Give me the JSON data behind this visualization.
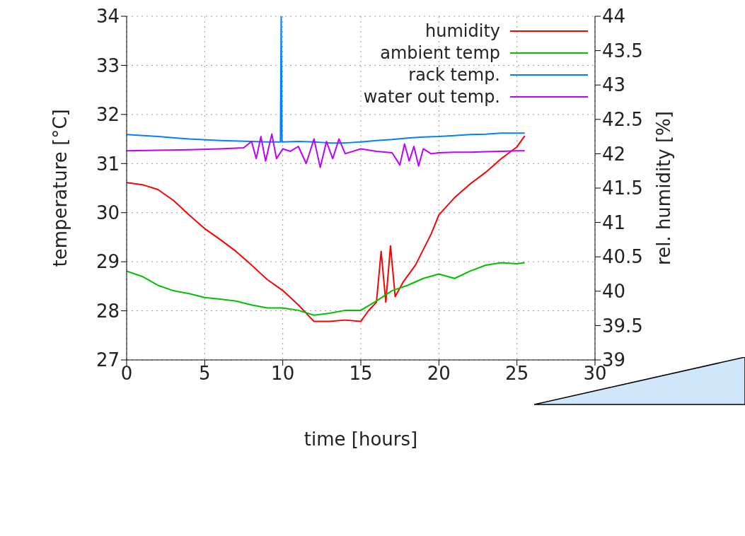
{
  "chart_data": {
    "type": "line",
    "xlabel": "time [hours]",
    "ylabel": "temperature [°C]",
    "y2label": "rel. humidity [%]",
    "xlim": [
      0,
      30
    ],
    "xticks": [
      0,
      5,
      10,
      15,
      20,
      25,
      30
    ],
    "ylim": [
      27,
      34
    ],
    "yticks": [
      27,
      28,
      29,
      30,
      31,
      32,
      33,
      34
    ],
    "y2lim": [
      39,
      44
    ],
    "y2ticks": [
      39,
      {
        "value": 39.5,
        "label": "39.5"
      },
      40,
      {
        "value": 40.5,
        "label": "40.5"
      },
      41,
      {
        "value": 41.5,
        "label": "41.5"
      },
      42,
      {
        "value": 42.5,
        "label": "42.5"
      },
      43,
      {
        "value": 43.5,
        "label": "43.5"
      },
      44
    ],
    "grid": true,
    "legend": "top right",
    "marker": "none",
    "line_style": "solid",
    "series": [
      {
        "name": "humidity",
        "color": "#ff0000",
        "axis": "y2",
        "x": [
          0,
          1,
          2,
          3,
          4,
          5,
          6,
          7,
          8,
          9,
          10,
          11,
          12,
          13,
          14,
          15,
          15.5,
          16,
          16.3,
          16.6,
          16.9,
          17.2,
          17.7,
          18.5,
          19.5,
          20,
          21,
          22,
          23,
          24,
          25,
          25.5
        ],
        "values": [
          41.58,
          41.55,
          41.48,
          41.32,
          41.11,
          40.91,
          40.75,
          40.58,
          40.38,
          40.17,
          40.01,
          39.8,
          39.56,
          39.56,
          39.58,
          39.56,
          39.72,
          39.84,
          40.58,
          39.84,
          40.66,
          39.92,
          40.13,
          40.38,
          40.83,
          41.11,
          41.36,
          41.56,
          41.73,
          41.93,
          42.1,
          42.26
        ]
      },
      {
        "name": "ambient temp",
        "color": "#00c000",
        "x": [
          0,
          1,
          2,
          3,
          4,
          5,
          6,
          7,
          8,
          9,
          10,
          11,
          12,
          13,
          14,
          15,
          16,
          17,
          18,
          19,
          20,
          21,
          22,
          23,
          24,
          25,
          25.5
        ],
        "values": [
          28.81,
          28.7,
          28.52,
          28.41,
          28.35,
          28.27,
          28.24,
          28.2,
          28.12,
          28.06,
          28.06,
          28.01,
          27.91,
          27.95,
          28.01,
          28.01,
          28.2,
          28.41,
          28.52,
          28.66,
          28.75,
          28.66,
          28.81,
          28.93,
          28.98,
          28.96,
          28.98
        ]
      },
      {
        "name": "rack temp.",
        "color": "#0080ff",
        "x": [
          0,
          2,
          4,
          6,
          8,
          9,
          9.85,
          9.9,
          9.95,
          11,
          12,
          13,
          14,
          15,
          16,
          17,
          18,
          19,
          20,
          21,
          22,
          23,
          24,
          25,
          25.5
        ],
        "values": [
          31.59,
          31.55,
          31.5,
          31.47,
          31.45,
          31.44,
          31.44,
          34,
          31.44,
          31.45,
          31.44,
          31.42,
          31.42,
          31.44,
          31.47,
          31.49,
          31.52,
          31.54,
          31.55,
          31.57,
          31.59,
          31.6,
          31.62,
          31.62,
          31.62
        ]
      },
      {
        "name": "water out temp.",
        "color": "#c000ff",
        "x": [
          0,
          2,
          4,
          6,
          7.5,
          8,
          8.3,
          8.6,
          8.9,
          9.3,
          9.6,
          10,
          10.5,
          11,
          11.5,
          12,
          12.4,
          12.8,
          13.2,
          13.6,
          14,
          15,
          16,
          17,
          17.5,
          17.8,
          18.1,
          18.4,
          18.7,
          19,
          19.5,
          20,
          21,
          22,
          23,
          24,
          25,
          25.5
        ],
        "values": [
          31.26,
          31.27,
          31.28,
          31.3,
          31.32,
          31.45,
          31.1,
          31.55,
          31.05,
          31.6,
          31.1,
          31.3,
          31.25,
          31.35,
          31.0,
          31.5,
          30.92,
          31.45,
          31.1,
          31.5,
          31.2,
          31.3,
          31.25,
          31.22,
          30.97,
          31.4,
          31.05,
          31.35,
          30.95,
          31.3,
          31.2,
          31.22,
          31.23,
          31.23,
          31.24,
          31.25,
          31.26,
          31.26
        ]
      }
    ]
  }
}
